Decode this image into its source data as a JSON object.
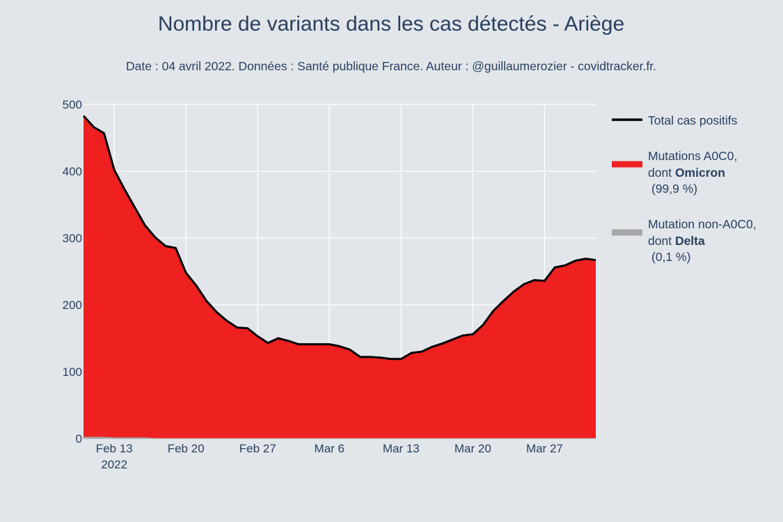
{
  "title": "Nombre de variants dans les cas détectés - Ariège",
  "subtitle": "Date : 04 avril 2022. Données : Santé publique France. Auteur : @guillaumerozier - covidtracker.fr.",
  "colors": {
    "background": "#e2e6eb",
    "grid": "#ffffff",
    "text": "#2a3f5f",
    "omicron": "#ee2020",
    "delta": "#a6a6a6",
    "total": "#000000"
  },
  "legend": {
    "total": {
      "line1": "Total cas positifs"
    },
    "omicron": {
      "line1": "Mutations A0C0,",
      "line2_prefix": "dont ",
      "line2_bold": "Omicron",
      "line3": "(99,9 %)"
    },
    "delta": {
      "line1": "Mutation non-A0C0,",
      "line2_prefix": "dont ",
      "line2_bold": "Delta",
      "line3": "(0,1 %)"
    }
  },
  "chart_data": {
    "type": "area",
    "title": "Nombre de variants dans les cas détectés - Ariège",
    "subtitle": "Date : 04 avril 2022. Données : Santé publique France. Auteur : @guillaumerozier - covidtracker.fr.",
    "xlabel": "",
    "ylabel": "",
    "x_start": "2022-02-10",
    "x_end": "2022-04-01",
    "xlim": [
      "2022-02-10",
      "2022-04-01"
    ],
    "ylim": [
      0,
      500
    ],
    "y_ticks": [
      0,
      100,
      200,
      300,
      400,
      500
    ],
    "x_ticks": [
      {
        "date": "2022-02-13",
        "label": "Feb 13",
        "sublabel": "2022"
      },
      {
        "date": "2022-02-20",
        "label": "Feb 20"
      },
      {
        "date": "2022-02-27",
        "label": "Feb 27"
      },
      {
        "date": "2022-03-06",
        "label": "Mar 6"
      },
      {
        "date": "2022-03-13",
        "label": "Mar 13"
      },
      {
        "date": "2022-03-20",
        "label": "Mar 20"
      },
      {
        "date": "2022-03-27",
        "label": "Mar 27"
      }
    ],
    "grid": true,
    "legend_position": "right",
    "x": [
      "2022-02-10",
      "2022-02-11",
      "2022-02-12",
      "2022-02-13",
      "2022-02-14",
      "2022-02-15",
      "2022-02-16",
      "2022-02-17",
      "2022-02-18",
      "2022-02-19",
      "2022-02-20",
      "2022-02-21",
      "2022-02-22",
      "2022-02-23",
      "2022-02-24",
      "2022-02-25",
      "2022-02-26",
      "2022-02-27",
      "2022-02-28",
      "2022-03-01",
      "2022-03-02",
      "2022-03-03",
      "2022-03-04",
      "2022-03-05",
      "2022-03-06",
      "2022-03-07",
      "2022-03-08",
      "2022-03-09",
      "2022-03-10",
      "2022-03-11",
      "2022-03-12",
      "2022-03-13",
      "2022-03-14",
      "2022-03-15",
      "2022-03-16",
      "2022-03-17",
      "2022-03-18",
      "2022-03-19",
      "2022-03-20",
      "2022-03-21",
      "2022-03-22",
      "2022-03-23",
      "2022-03-24",
      "2022-03-25",
      "2022-03-26",
      "2022-03-27",
      "2022-03-28",
      "2022-03-29",
      "2022-03-30",
      "2022-03-31",
      "2022-04-01"
    ],
    "series": [
      {
        "name": "Mutation non-A0C0, dont Delta (0,1 %)",
        "kind": "area",
        "values": [
          2,
          2,
          2,
          1,
          1,
          1,
          1,
          0,
          0,
          0,
          0,
          0,
          0,
          0,
          0,
          0,
          0,
          0,
          0,
          0,
          0,
          0,
          0,
          0,
          0,
          0,
          0,
          0,
          0,
          0,
          0,
          0,
          0,
          0,
          0,
          0,
          0,
          0,
          0,
          0,
          0,
          0,
          0,
          0,
          0,
          0,
          0,
          0,
          0,
          0,
          0
        ]
      },
      {
        "name": "Mutations A0C0, dont Omicron (99,9 %)",
        "kind": "area",
        "values": [
          481,
          464,
          455,
          401,
          372,
          345,
          318,
          300,
          288,
          285,
          248,
          229,
          206,
          189,
          176,
          166,
          165,
          153,
          143,
          150,
          146,
          141,
          141,
          141,
          141,
          138,
          133,
          122,
          122,
          121,
          119,
          119,
          128,
          130,
          137,
          142,
          148,
          154,
          156,
          170,
          191,
          206,
          220,
          231,
          237,
          236,
          256,
          259,
          266,
          269,
          267
        ]
      },
      {
        "name": "Total cas positifs",
        "kind": "line",
        "values": [
          483,
          466,
          457,
          402,
          373,
          346,
          319,
          301,
          288,
          285,
          248,
          229,
          206,
          189,
          176,
          166,
          165,
          153,
          143,
          150,
          146,
          141,
          141,
          141,
          141,
          138,
          133,
          122,
          122,
          121,
          119,
          119,
          128,
          130,
          137,
          142,
          148,
          154,
          156,
          170,
          191,
          206,
          220,
          231,
          237,
          236,
          256,
          259,
          266,
          269,
          267
        ]
      }
    ]
  }
}
